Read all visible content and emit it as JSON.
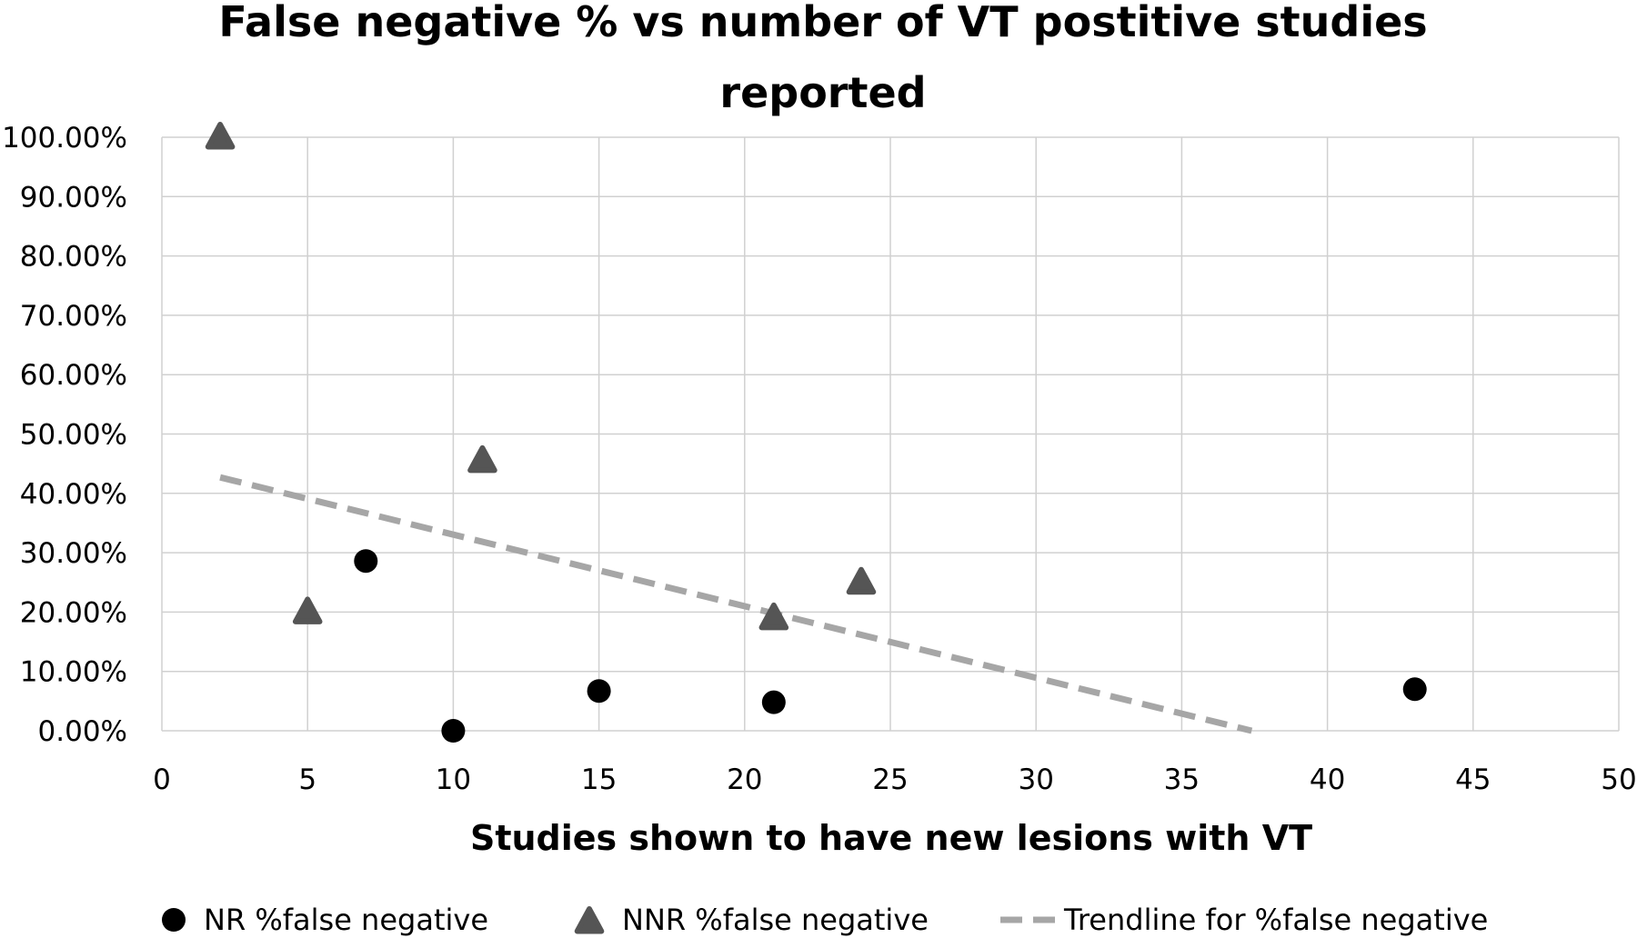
{
  "chart_data": {
    "type": "scatter",
    "title_lines": [
      "False negative % vs number of VT postitive studies",
      "reported"
    ],
    "xlabel": "Studies shown to have new lesions with VT",
    "ylabel": "",
    "xlim": [
      0,
      50
    ],
    "ylim": [
      0,
      1
    ],
    "x_ticks": [
      0,
      5,
      10,
      15,
      20,
      25,
      30,
      35,
      40,
      45,
      50
    ],
    "x_tick_labels": [
      "0",
      "5",
      "10",
      "15",
      "20",
      "25",
      "30",
      "35",
      "40",
      "45",
      "50"
    ],
    "y_ticks": [
      0,
      0.1,
      0.2,
      0.3,
      0.4,
      0.5,
      0.6,
      0.7,
      0.8,
      0.9,
      1.0
    ],
    "y_tick_labels": [
      "0.00%",
      "10.00%",
      "20.00%",
      "30.00%",
      "40.00%",
      "50.00%",
      "60.00%",
      "70.00%",
      "80.00%",
      "90.00%",
      "100.00%"
    ],
    "grid": true,
    "legend_position": "bottom",
    "series": [
      {
        "name": "NR %false negative",
        "marker": "circle",
        "color": "#000000",
        "points": [
          {
            "x": 7,
            "y": 0.286
          },
          {
            "x": 10,
            "y": 0.0
          },
          {
            "x": 15,
            "y": 0.067
          },
          {
            "x": 21,
            "y": 0.048
          },
          {
            "x": 43,
            "y": 0.07
          }
        ]
      },
      {
        "name": "NNR %false negative",
        "marker": "triangle",
        "color": "#555555",
        "points": [
          {
            "x": 2,
            "y": 1.0
          },
          {
            "x": 5,
            "y": 0.2
          },
          {
            "x": 11,
            "y": 0.455
          },
          {
            "x": 21,
            "y": 0.19
          },
          {
            "x": 24,
            "y": 0.25
          }
        ]
      }
    ],
    "trendline": {
      "name": "Trendline for %false negative",
      "style": "dashed",
      "color": "#a6a6a6",
      "x": [
        2,
        37.4
      ],
      "y": [
        0.427,
        0.0
      ]
    }
  }
}
